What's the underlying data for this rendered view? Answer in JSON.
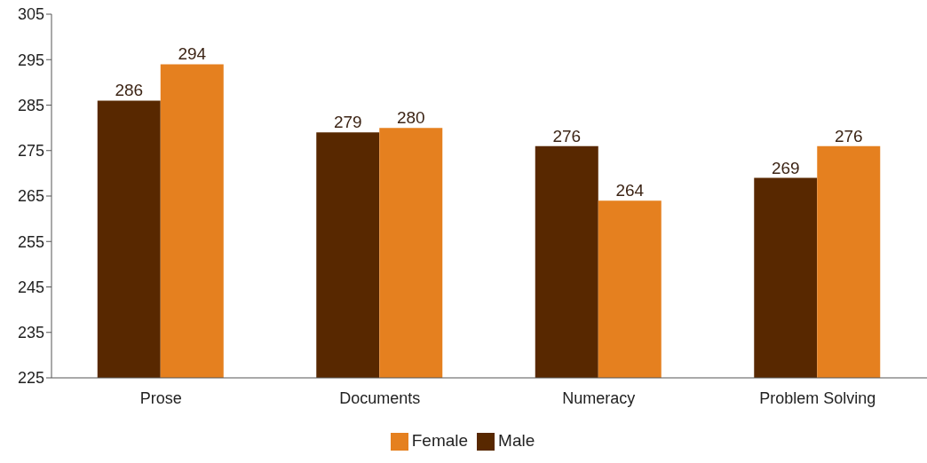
{
  "chart_data": {
    "type": "bar",
    "categories": [
      "Prose",
      "Documents",
      "Numeracy",
      "Problem Solving"
    ],
    "series": [
      {
        "name": "Male",
        "color": "#582800",
        "values": [
          286,
          279,
          276,
          269
        ]
      },
      {
        "name": "Female",
        "color": "#e5801f",
        "values": [
          294,
          280,
          264,
          276
        ]
      }
    ],
    "ylim": [
      225,
      305
    ],
    "yticks": [
      225,
      235,
      245,
      255,
      265,
      275,
      285,
      295,
      305
    ],
    "grid": false,
    "legend": "bottom",
    "data_labels": true
  }
}
